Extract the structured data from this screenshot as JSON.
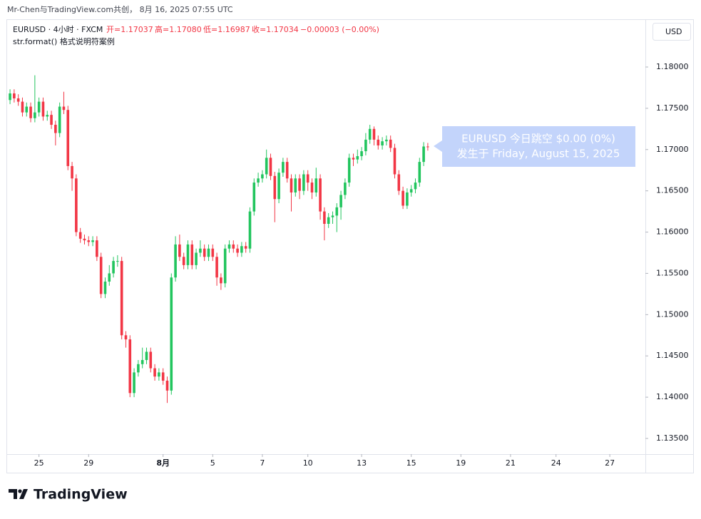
{
  "header": {
    "credit": "Mr-Chen与TradingView.com共创， 8月 16, 2025 07:55 UTC",
    "symbol": "EURUSD · 4小时 · FXCM",
    "ohlc": [
      "开=1.17037",
      "高=1.17080",
      "低=1.16987",
      "收=1.17034",
      "−0.00003 (−0.00%)"
    ],
    "indicator": "str.format() 格式说明符案例",
    "currency": "USD"
  },
  "footer": {
    "brand": "TradingView"
  },
  "chart_data": {
    "type": "candlestick",
    "annotation": [
      "EURUSD 今日跳空 $0.00 (0%)",
      "发生于 Friday, August 15, 2025"
    ],
    "up_color": "#22c55e",
    "down_color": "#f23645",
    "xlim": [
      -0.7,
      153.6
    ],
    "xticks": [
      {
        "value": 7,
        "label": "25"
      },
      {
        "value": 19,
        "label": "29"
      },
      {
        "value": 37,
        "label": "8月"
      },
      {
        "value": 49,
        "label": "5"
      },
      {
        "value": 61,
        "label": "7"
      },
      {
        "value": 72,
        "label": "10"
      },
      {
        "value": 85,
        "label": "13"
      },
      {
        "value": 97,
        "label": "15"
      },
      {
        "value": 109,
        "label": "19"
      },
      {
        "value": 121,
        "label": "21"
      },
      {
        "value": 132,
        "label": "24"
      },
      {
        "value": 145,
        "label": "27"
      }
    ],
    "ylim": [
      1.1331,
      1.1857
    ],
    "yticks": [
      {
        "value": 1.135,
        "label": "1.13500"
      },
      {
        "value": 1.14,
        "label": "1.14000"
      },
      {
        "value": 1.145,
        "label": "1.14500"
      },
      {
        "value": 1.15,
        "label": "1.15000"
      },
      {
        "value": 1.155,
        "label": "1.15500"
      },
      {
        "value": 1.16,
        "label": "1.16000"
      },
      {
        "value": 1.165,
        "label": "1.16500"
      },
      {
        "value": 1.17,
        "label": "1.17000"
      },
      {
        "value": 1.175,
        "label": "1.17500"
      },
      {
        "value": 1.18,
        "label": "1.18000"
      }
    ],
    "open": [
      1.176,
      1.1768,
      1.1762,
      1.1758,
      1.1745,
      1.1752,
      1.1738,
      1.1745,
      1.1758,
      1.174,
      1.1742,
      1.173,
      1.172,
      1.1752,
      1.1748,
      1.168,
      1.1665,
      1.16,
      1.1592,
      1.159,
      1.1588,
      1.159,
      1.157,
      1.1525,
      1.154,
      1.155,
      1.1565,
      1.1565,
      1.1475,
      1.147,
      1.1405,
      1.143,
      1.144,
      1.1445,
      1.1455,
      1.1435,
      1.1425,
      1.143,
      1.142,
      1.1408,
      1.1545,
      1.1585,
      1.157,
      1.156,
      1.1585,
      1.156,
      1.1575,
      1.158,
      1.157,
      1.158,
      1.157,
      1.1545,
      1.1538,
      1.158,
      1.1585,
      1.158,
      1.1575,
      1.1583,
      1.158,
      1.1625,
      1.166,
      1.1665,
      1.167,
      1.169,
      1.1668,
      1.164,
      1.1672,
      1.1685,
      1.1665,
      1.1648,
      1.1665,
      1.165,
      1.167,
      1.166,
      1.1648,
      1.1665,
      1.1625,
      1.161,
      1.1618,
      1.162,
      1.163,
      1.1645,
      1.166,
      1.169,
      1.1688,
      1.1692,
      1.1698,
      1.1712,
      1.1725,
      1.1712,
      1.1705,
      1.171,
      1.1712,
      1.1702,
      1.167,
      1.165,
      1.1632,
      1.1648,
      1.1652,
      1.166,
      1.1685,
      1.17037
    ],
    "high": [
      1.1773,
      1.1773,
      1.1767,
      1.1763,
      1.1757,
      1.1757,
      1.179,
      1.1763,
      1.1763,
      1.1747,
      1.1747,
      1.1735,
      1.1757,
      1.177,
      1.1753,
      1.1685,
      1.167,
      1.1605,
      1.1597,
      1.1595,
      1.1595,
      1.1595,
      1.1575,
      1.1545,
      1.156,
      1.157,
      1.1572,
      1.157,
      1.148,
      1.1475,
      1.1435,
      1.1445,
      1.146,
      1.146,
      1.146,
      1.144,
      1.1435,
      1.1435,
      1.1425,
      1.155,
      1.1595,
      1.1597,
      1.1575,
      1.159,
      1.159,
      1.158,
      1.159,
      1.1585,
      1.1585,
      1.1585,
      1.1575,
      1.155,
      1.1585,
      1.159,
      1.159,
      1.1585,
      1.1588,
      1.1588,
      1.163,
      1.1665,
      1.1672,
      1.1675,
      1.17,
      1.1695,
      1.1673,
      1.1677,
      1.169,
      1.169,
      1.167,
      1.167,
      1.167,
      1.1675,
      1.1675,
      1.1665,
      1.1678,
      1.167,
      1.163,
      1.1623,
      1.1625,
      1.1635,
      1.165,
      1.1665,
      1.1695,
      1.1695,
      1.17,
      1.1703,
      1.172,
      1.173,
      1.1728,
      1.1717,
      1.1715,
      1.1717,
      1.1717,
      1.1707,
      1.1675,
      1.1655,
      1.1653,
      1.1657,
      1.1665,
      1.169,
      1.1709,
      1.1708
    ],
    "low": [
      1.1755,
      1.1757,
      1.1753,
      1.174,
      1.174,
      1.1733,
      1.1733,
      1.174,
      1.1735,
      1.1735,
      1.1725,
      1.1705,
      1.1715,
      1.1743,
      1.1675,
      1.165,
      1.1595,
      1.1587,
      1.1585,
      1.1583,
      1.1583,
      1.1565,
      1.152,
      1.152,
      1.1535,
      1.1545,
      1.1558,
      1.147,
      1.146,
      1.14,
      1.14,
      1.1425,
      1.1435,
      1.144,
      1.143,
      1.142,
      1.142,
      1.1415,
      1.1393,
      1.1403,
      1.154,
      1.1565,
      1.1555,
      1.1555,
      1.1555,
      1.1555,
      1.157,
      1.1565,
      1.1565,
      1.1565,
      1.1535,
      1.153,
      1.1533,
      1.1575,
      1.1575,
      1.157,
      1.157,
      1.1575,
      1.1575,
      1.162,
      1.1655,
      1.166,
      1.1665,
      1.1663,
      1.1612,
      1.1635,
      1.1667,
      1.166,
      1.1625,
      1.1643,
      1.164,
      1.1645,
      1.165,
      1.164,
      1.1643,
      1.1615,
      1.159,
      1.1605,
      1.161,
      1.16,
      1.1615,
      1.164,
      1.1655,
      1.168,
      1.1683,
      1.1687,
      1.1693,
      1.1707,
      1.1705,
      1.17,
      1.17,
      1.1705,
      1.1697,
      1.1665,
      1.1645,
      1.1628,
      1.1628,
      1.1643,
      1.1647,
      1.1655,
      1.168,
      1.16987
    ],
    "close": [
      1.1768,
      1.1762,
      1.1758,
      1.1745,
      1.1752,
      1.1738,
      1.1745,
      1.1758,
      1.174,
      1.1742,
      1.173,
      1.172,
      1.1752,
      1.1748,
      1.168,
      1.1665,
      1.16,
      1.1592,
      1.159,
      1.1588,
      1.159,
      1.157,
      1.1525,
      1.154,
      1.155,
      1.1565,
      1.1565,
      1.1475,
      1.147,
      1.1405,
      1.143,
      1.144,
      1.1445,
      1.1455,
      1.1435,
      1.1425,
      1.143,
      1.142,
      1.1408,
      1.1545,
      1.1585,
      1.157,
      1.156,
      1.1585,
      1.156,
      1.1575,
      1.158,
      1.157,
      1.158,
      1.157,
      1.1545,
      1.1538,
      1.158,
      1.1585,
      1.158,
      1.1575,
      1.1583,
      1.158,
      1.1625,
      1.166,
      1.1665,
      1.167,
      1.169,
      1.1668,
      1.164,
      1.1672,
      1.1685,
      1.1665,
      1.1648,
      1.1665,
      1.165,
      1.167,
      1.166,
      1.1648,
      1.1665,
      1.1625,
      1.161,
      1.1618,
      1.162,
      1.163,
      1.1645,
      1.166,
      1.169,
      1.1688,
      1.1692,
      1.1698,
      1.1712,
      1.1725,
      1.1712,
      1.1705,
      1.171,
      1.1712,
      1.1702,
      1.167,
      1.165,
      1.1632,
      1.1648,
      1.1652,
      1.166,
      1.1685,
      1.17037,
      1.17034
    ]
  }
}
